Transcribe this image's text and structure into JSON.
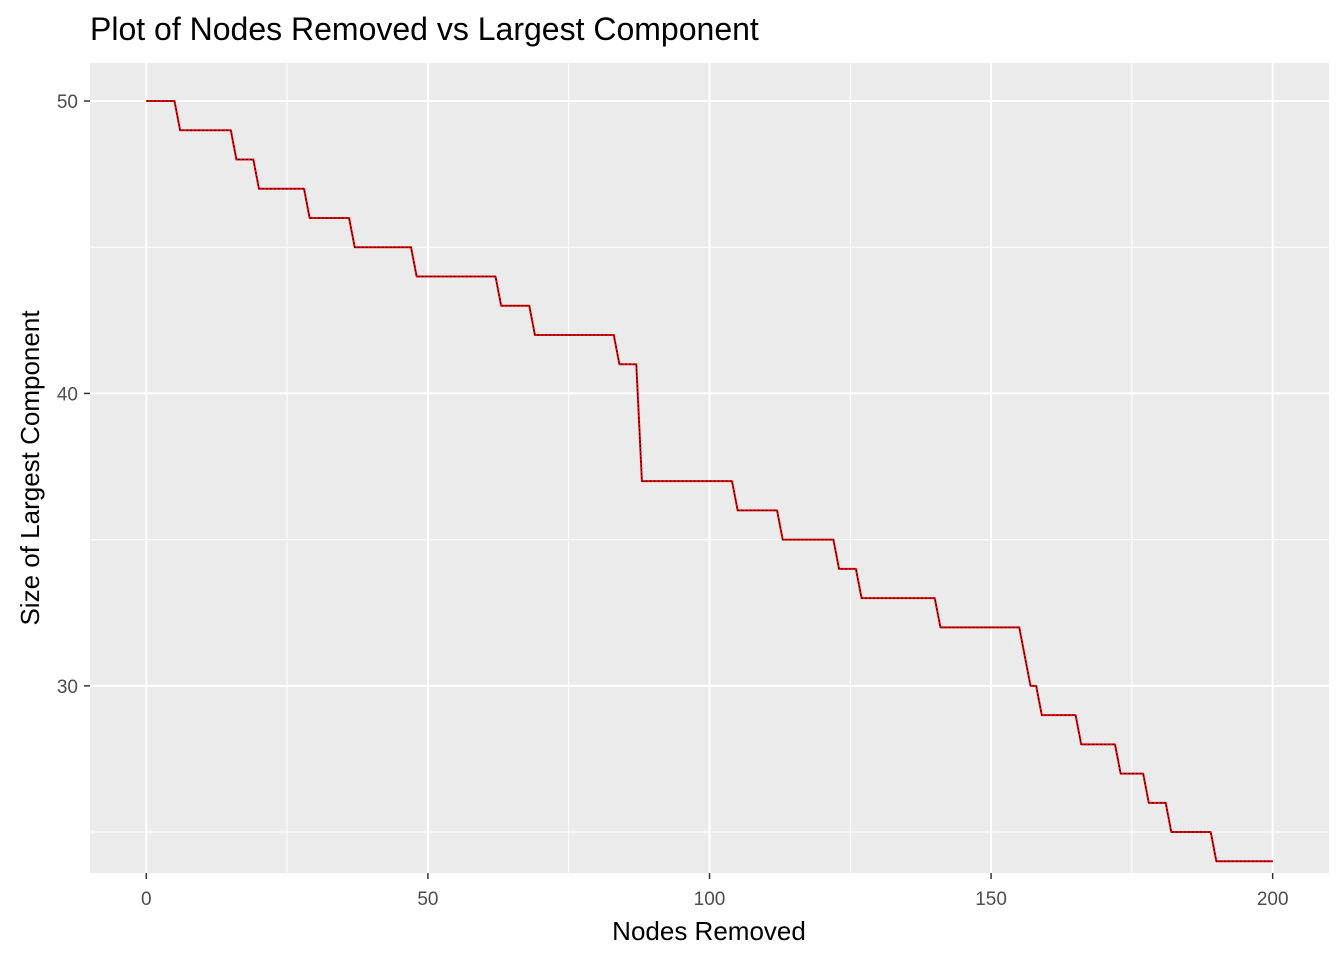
{
  "chart_data": {
    "type": "line",
    "title": "Plot of Nodes Removed vs Largest Component",
    "xlabel": "Nodes Removed",
    "ylabel": "Size of Largest Component",
    "xlim": [
      -10,
      210
    ],
    "ylim": [
      23.6,
      51.3
    ],
    "x_ticks": [
      0,
      50,
      100,
      150,
      200
    ],
    "x_tick_labels": [
      "0",
      "50",
      "100",
      "150",
      "200"
    ],
    "x_minor_ticks": [
      25,
      75,
      125,
      175
    ],
    "y_ticks": [
      30,
      40,
      50
    ],
    "y_tick_labels": [
      "30",
      "40",
      "50"
    ],
    "y_minor_ticks": [
      25,
      35,
      45
    ],
    "grid": true,
    "panel_background": "#EBEBEB",
    "grid_color": "#FFFFFF",
    "series": [
      {
        "color": "#FF0000",
        "dash_color": "#000000",
        "x": [
          0,
          5,
          6,
          15,
          16,
          19,
          20,
          28,
          29,
          36,
          37,
          47,
          48,
          62,
          63,
          68,
          69,
          83,
          84,
          87,
          88,
          104,
          105,
          112,
          113,
          122,
          123,
          126,
          127,
          140,
          141,
          155,
          157,
          158,
          159,
          165,
          166,
          172,
          173,
          177,
          178,
          181,
          182,
          189,
          190,
          200
        ],
        "values": [
          50,
          50,
          49,
          49,
          48,
          48,
          47,
          47,
          46,
          46,
          45,
          45,
          44,
          44,
          43,
          43,
          42,
          42,
          41,
          41,
          37,
          37,
          36,
          36,
          35,
          35,
          34,
          34,
          33,
          33,
          32,
          32,
          30,
          30,
          29,
          29,
          28,
          28,
          27,
          27,
          26,
          26,
          25,
          25,
          24,
          24
        ]
      }
    ]
  }
}
